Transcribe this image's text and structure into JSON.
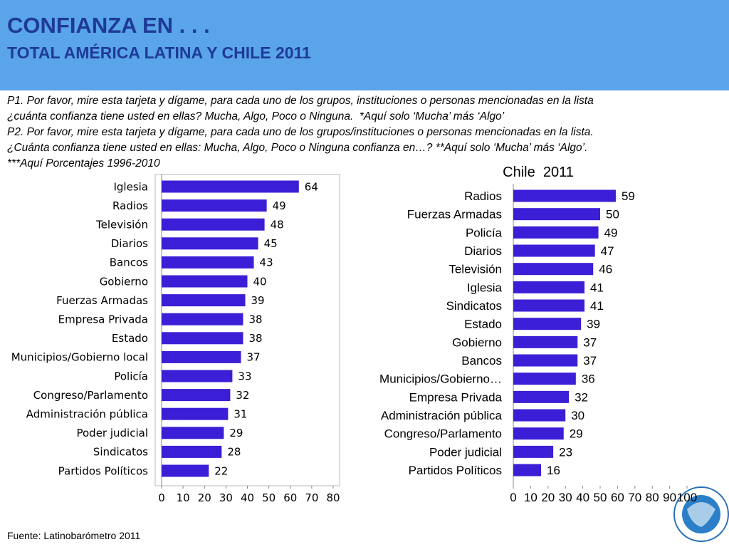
{
  "header": {
    "title": "CONFIANZA EN . . .",
    "subtitle": "TOTAL AMÉRICA LATINA Y CHILE 2011"
  },
  "question": [
    "P1. Por favor, mire esta tarjeta y dígame, para cada uno de los grupos, instituciones o personas mencionadas en la lista",
    "¿cuánta confianza tiene usted en ellas? Mucha, Algo, Poco o Ninguna.  *Aquí solo ‘Mucha’ más ‘Algo’",
    "P2. Por favor, mire esta tarjeta y dígame, para cada uno de los grupos/instituciones o personas mencionadas en la lista.",
    "¿Cuánta confianza tiene usted en ellas: Mucha, Algo, Poco o Ninguna confianza en…? **Aquí solo ‘Mucha’ más ‘Algo’.",
    "***Aquí Porcentajes 1996-2010"
  ],
  "source": "Fuente: Latinobarómetro 2011",
  "chart_data": [
    {
      "type": "hbar",
      "color": "#3b1fd6",
      "categories": [
        "Iglesia",
        "Radios",
        "Televisión",
        "Diarios",
        "Bancos",
        "Gobierno",
        "Fuerzas Armadas",
        "Empresa Privada",
        "Estado",
        "Municipios/Gobierno local",
        "Policía",
        "Congreso/Parlamento",
        "Administración pública",
        "Poder judicial",
        "Sindicatos",
        "Partidos Políticos"
      ],
      "values": [
        64,
        49,
        48,
        45,
        43,
        40,
        39,
        38,
        38,
        37,
        33,
        32,
        31,
        29,
        28,
        22
      ],
      "xlim": [
        0,
        80
      ],
      "xticks": [
        0,
        10,
        20,
        30,
        40,
        50,
        60,
        70,
        80
      ]
    },
    {
      "type": "hbar",
      "title": "Chile  2011",
      "color": "#3b1fd6",
      "categories": [
        "Radios",
        "Fuerzas Armadas",
        "Policía",
        "Diarios",
        "Televisión",
        "Iglesia",
        "Sindicatos",
        "Estado",
        "Gobierno",
        "Bancos",
        "Municipios/Gobierno…",
        "Empresa Privada",
        "Administración pública",
        "Congreso/Parlamento",
        "Poder judicial",
        "Partidos Políticos"
      ],
      "values": [
        59,
        50,
        49,
        47,
        46,
        41,
        41,
        39,
        37,
        37,
        36,
        32,
        30,
        29,
        23,
        16
      ],
      "xlim": [
        0,
        100
      ],
      "xticks": [
        0,
        10,
        20,
        30,
        40,
        50,
        60,
        70,
        80,
        90,
        100
      ]
    }
  ]
}
